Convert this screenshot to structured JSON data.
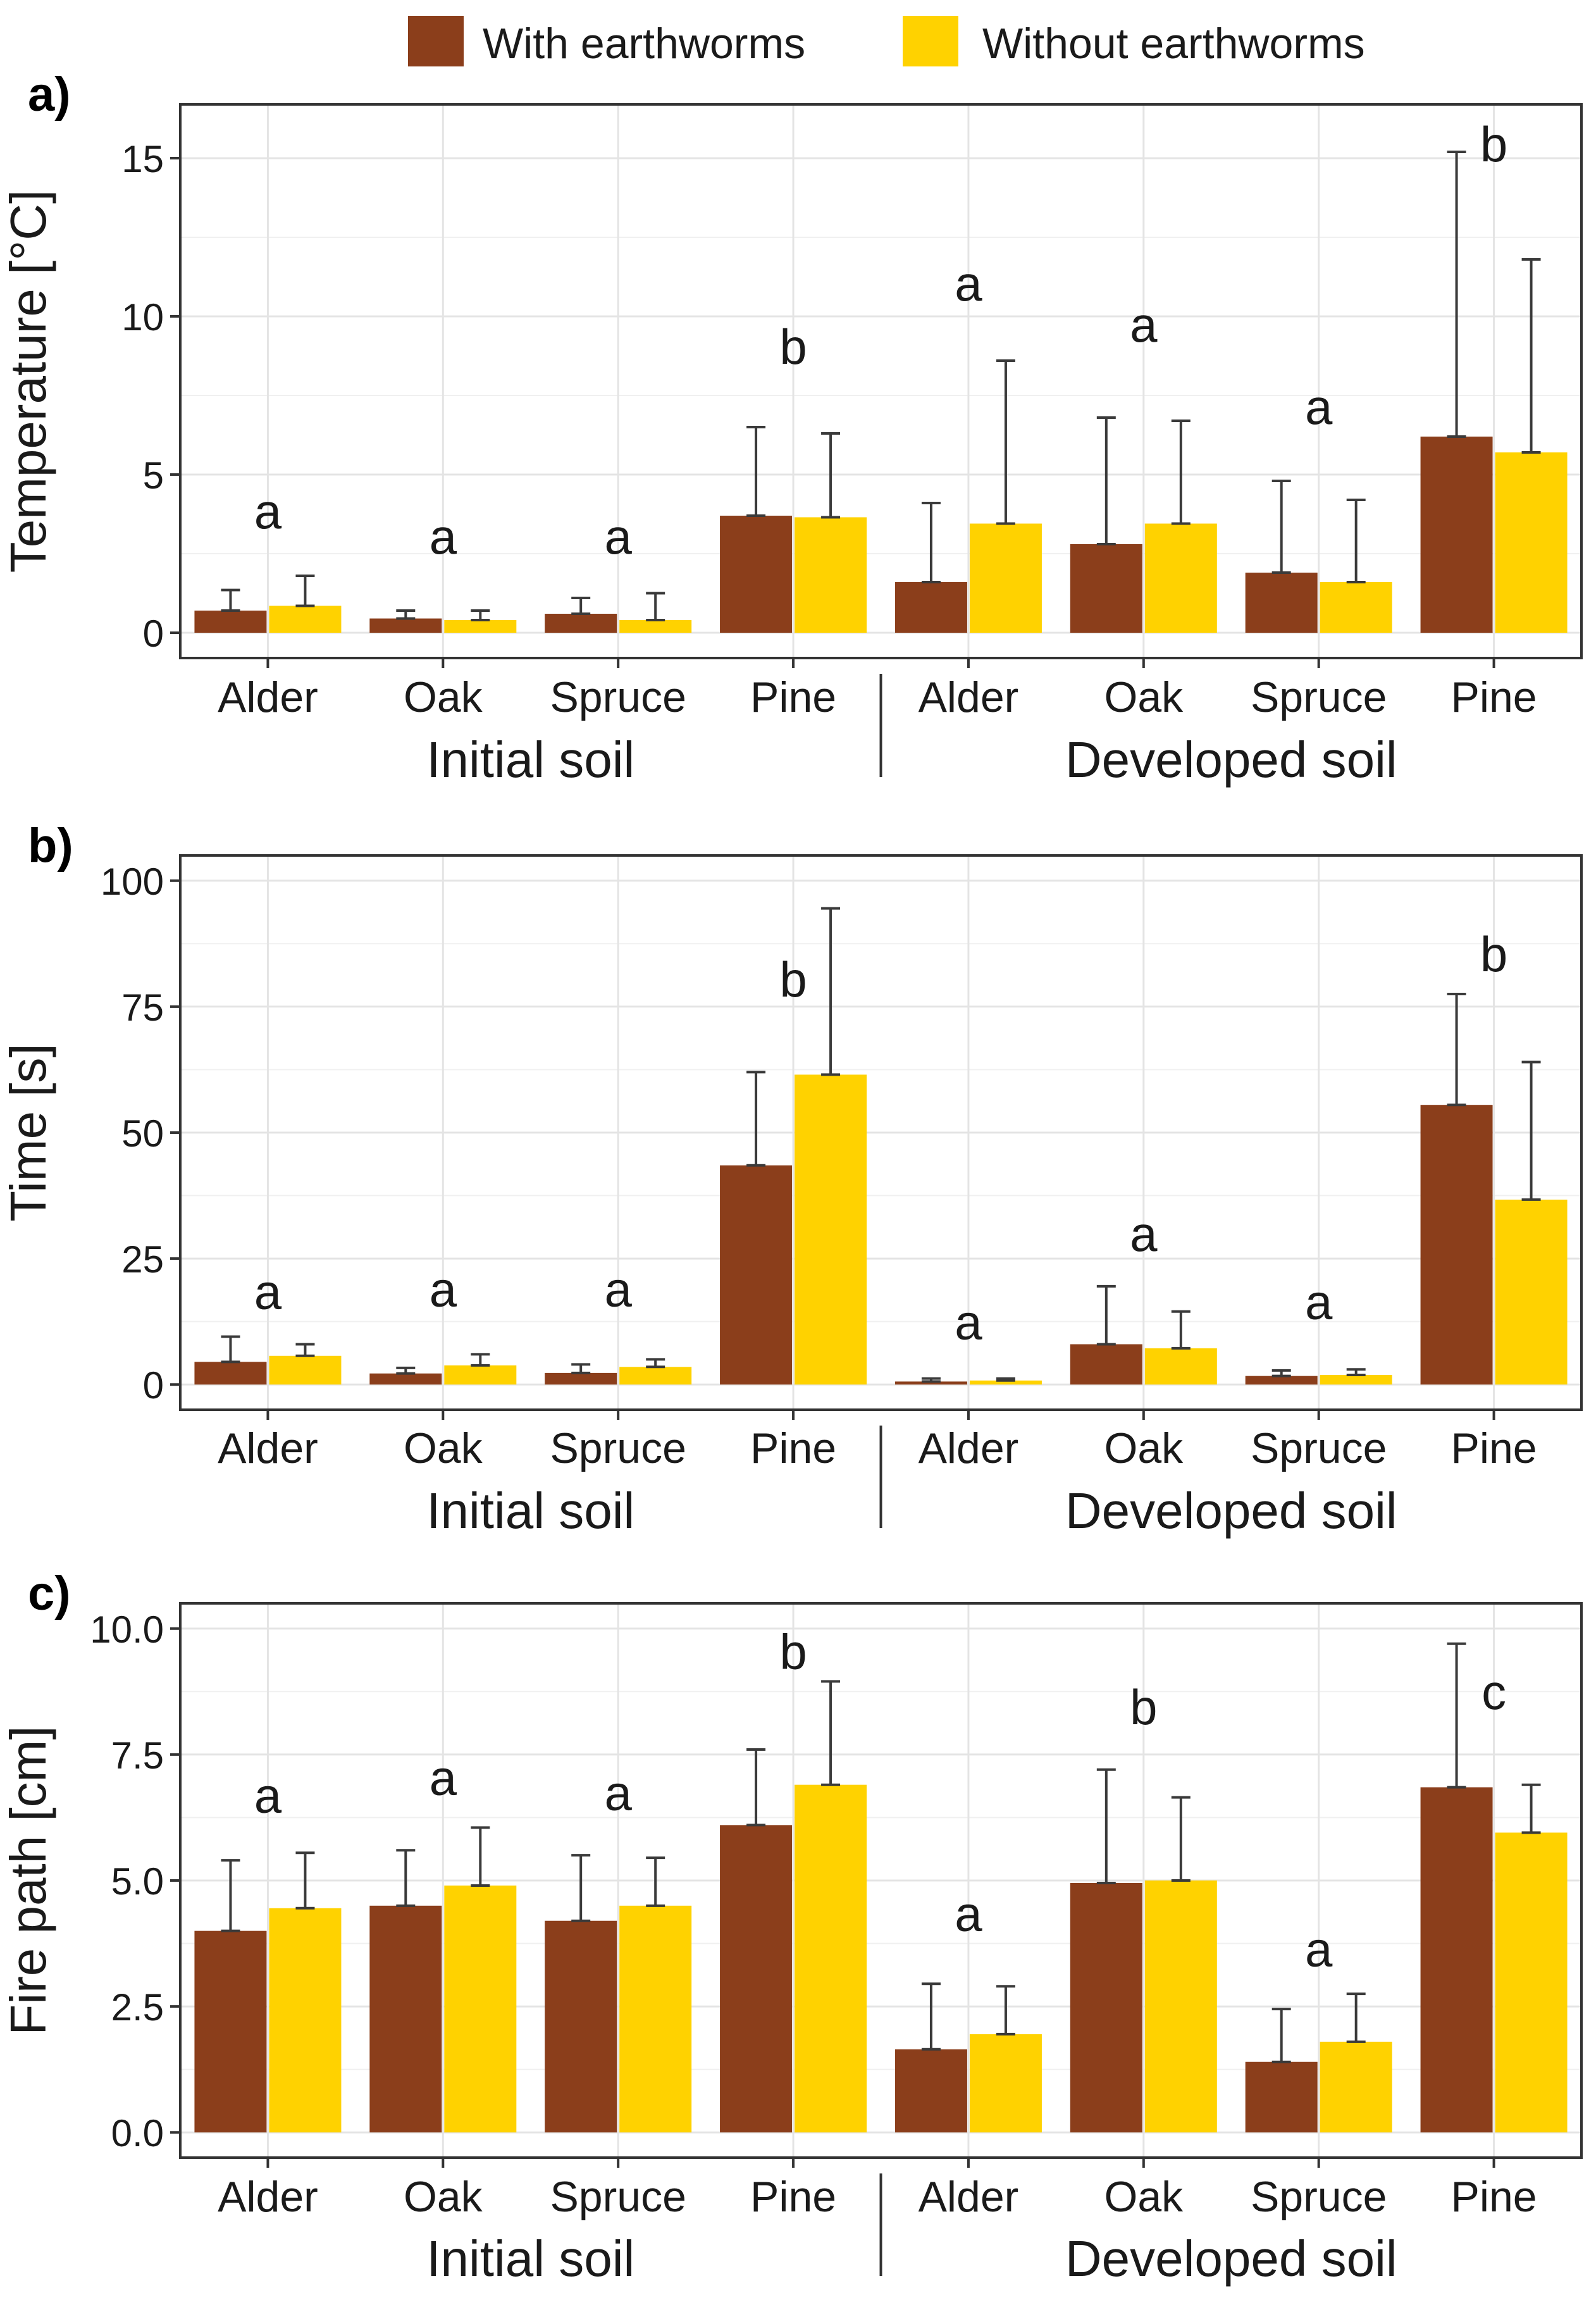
{
  "legend": {
    "items": [
      {
        "label": "With earthworms",
        "color": "#8B3E1B"
      },
      {
        "label": "Without earthworms",
        "color": "#FFD200"
      }
    ]
  },
  "chart_data": [
    {
      "type": "bar",
      "panel_tag": "a)",
      "ylabel": "Temperature [°C]",
      "ylim": [
        -0.8,
        16.7
      ],
      "yticks": [
        0,
        5,
        10,
        15
      ],
      "ytick_labels": [
        "0",
        "5",
        "10",
        "15"
      ],
      "categories": [
        "Alder",
        "Oak",
        "Spruce",
        "Pine",
        "Alder",
        "Oak",
        "Spruce",
        "Pine"
      ],
      "groups": [
        {
          "label": "Initial soil",
          "count": 4
        },
        {
          "label": "Developed soil",
          "count": 4
        }
      ],
      "series": [
        {
          "name": "With earthworms",
          "values": [
            0.7,
            0.45,
            0.6,
            3.7,
            1.6,
            2.8,
            1.9,
            6.2
          ],
          "errors": [
            1.35,
            0.7,
            1.1,
            6.5,
            4.1,
            6.8,
            4.8,
            15.2
          ]
        },
        {
          "name": "Without earthworms",
          "values": [
            0.85,
            0.4,
            0.4,
            3.65,
            3.45,
            3.45,
            1.6,
            5.7
          ],
          "errors": [
            1.8,
            0.7,
            1.25,
            6.3,
            8.6,
            6.7,
            4.2,
            11.8
          ]
        }
      ],
      "letters": [
        {
          "text": "a",
          "value": 3.3
        },
        {
          "text": "a",
          "value": 2.5
        },
        {
          "text": "a",
          "value": 2.5
        },
        {
          "text": "b",
          "value": 8.5
        },
        {
          "text": "a",
          "value": 10.5
        },
        {
          "text": "a",
          "value": 9.2
        },
        {
          "text": "a",
          "value": 6.6
        },
        {
          "text": "b",
          "value": 14.9
        }
      ]
    },
    {
      "type": "bar",
      "panel_tag": "b)",
      "ylabel": "Time [s]",
      "ylim": [
        -5,
        105
      ],
      "yticks": [
        0,
        25,
        50,
        75,
        100
      ],
      "ytick_labels": [
        "0",
        "25",
        "50",
        "75",
        "100"
      ],
      "categories": [
        "Alder",
        "Oak",
        "Spruce",
        "Pine",
        "Alder",
        "Oak",
        "Spruce",
        "Pine"
      ],
      "groups": [
        {
          "label": "Initial soil",
          "count": 4
        },
        {
          "label": "Developed soil",
          "count": 4
        }
      ],
      "series": [
        {
          "name": "With earthworms",
          "values": [
            4.5,
            2.2,
            2.3,
            43.5,
            0.6,
            8.0,
            1.7,
            55.5
          ],
          "errors": [
            9.5,
            3.3,
            4.0,
            62.0,
            1.2,
            19.5,
            2.8,
            77.5
          ]
        },
        {
          "name": "Without earthworms",
          "values": [
            5.7,
            3.8,
            3.5,
            61.5,
            0.8,
            7.2,
            1.9,
            36.7
          ],
          "errors": [
            8.0,
            6.0,
            5.0,
            94.5,
            1.2,
            14.5,
            3.0,
            64.0
          ]
        }
      ],
      "letters": [
        {
          "text": "a",
          "value": 15.0
        },
        {
          "text": "a",
          "value": 15.5
        },
        {
          "text": "a",
          "value": 15.5
        },
        {
          "text": "b",
          "value": 77.0
        },
        {
          "text": "a",
          "value": 9.0
        },
        {
          "text": "a",
          "value": 26.5
        },
        {
          "text": "a",
          "value": 13.0
        },
        {
          "text": "b",
          "value": 82.0
        }
      ]
    },
    {
      "type": "bar",
      "panel_tag": "c)",
      "ylabel": "Fire path [cm]",
      "ylim": [
        -0.5,
        10.5
      ],
      "yticks": [
        0,
        2.5,
        5,
        7.5,
        10
      ],
      "ytick_labels": [
        "0.0",
        "2.5",
        "5.0",
        "7.5",
        "10.0"
      ],
      "categories": [
        "Alder",
        "Oak",
        "Spruce",
        "Pine",
        "Alder",
        "Oak",
        "Spruce",
        "Pine"
      ],
      "groups": [
        {
          "label": "Initial soil",
          "count": 4
        },
        {
          "label": "Developed soil",
          "count": 4
        }
      ],
      "series": [
        {
          "name": "With earthworms",
          "values": [
            4.0,
            4.5,
            4.2,
            6.1,
            1.65,
            4.95,
            1.4,
            6.85
          ],
          "errors": [
            5.4,
            5.6,
            5.5,
            7.6,
            2.95,
            7.2,
            2.45,
            9.7
          ]
        },
        {
          "name": "Without earthworms",
          "values": [
            4.45,
            4.9,
            4.5,
            6.9,
            1.95,
            5.0,
            1.8,
            5.95
          ],
          "errors": [
            5.55,
            6.05,
            5.45,
            8.95,
            2.9,
            6.65,
            2.75,
            6.9
          ]
        }
      ],
      "letters": [
        {
          "text": "a",
          "value": 6.35
        },
        {
          "text": "a",
          "value": 6.7
        },
        {
          "text": "a",
          "value": 6.4
        },
        {
          "text": "b",
          "value": 9.2
        },
        {
          "text": "a",
          "value": 4.0
        },
        {
          "text": "b",
          "value": 8.1
        },
        {
          "text": "a",
          "value": 3.3
        },
        {
          "text": "c",
          "value": 8.4
        }
      ]
    }
  ]
}
